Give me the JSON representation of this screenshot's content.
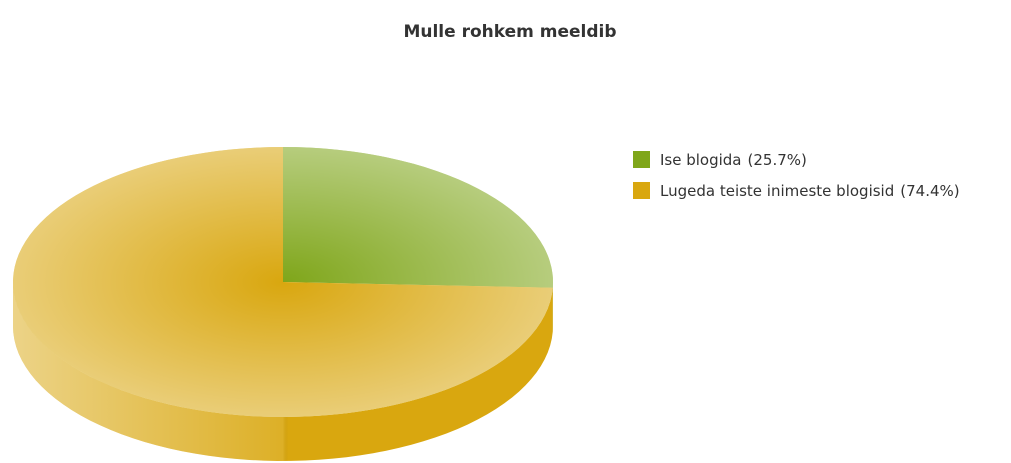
{
  "chart_data": {
    "type": "pie",
    "title": "Mulle rohkem meeldib",
    "categories": [
      "Ise blogida",
      "Lugeda teiste inimeste blogisid"
    ],
    "values": [
      25.7,
      74.4
    ],
    "value_labels": [
      "(25.7%)",
      "(74.4%)"
    ],
    "colors": [
      "#7fa61a",
      "#d9a70f"
    ],
    "legend": "right"
  }
}
